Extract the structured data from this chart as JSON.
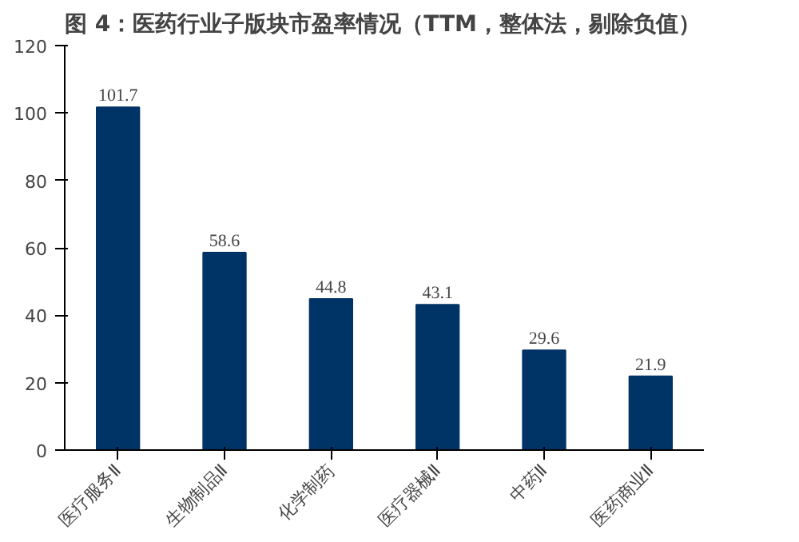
{
  "chart_data": {
    "type": "bar",
    "title": "图 4：医药行业子版块市盈率情况（TTM，整体法，剔除负值）",
    "categories": [
      "医疗服务Ⅱ",
      "生物制品Ⅱ",
      "化学制药",
      "医疗器械Ⅱ",
      "中药Ⅱ",
      "医药商业Ⅱ"
    ],
    "values": [
      101.7,
      58.6,
      44.8,
      43.1,
      29.6,
      21.9
    ],
    "color": "#003366",
    "ylim": [
      0,
      120
    ],
    "yticks": [
      0,
      20,
      40,
      60,
      80,
      100,
      120
    ],
    "grid": false,
    "data_labels": true
  }
}
